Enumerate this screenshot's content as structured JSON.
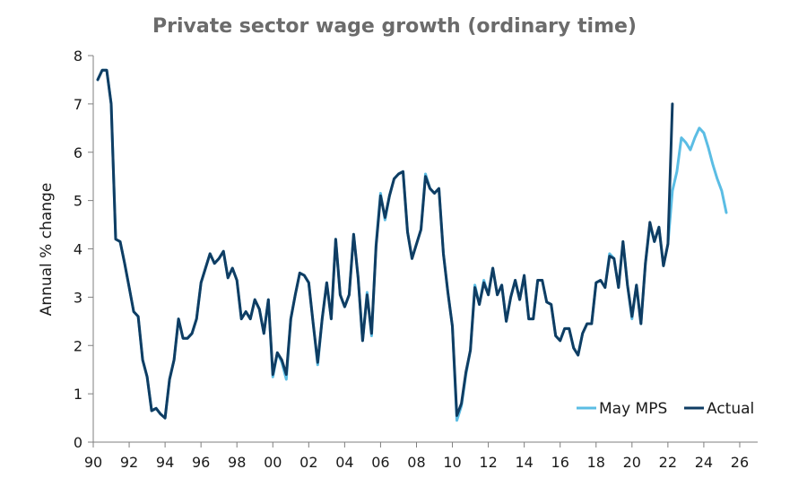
{
  "chart_data": {
    "type": "line",
    "title": "Private sector wage growth (ordinary time)",
    "xlabel": "",
    "ylabel": "Annual % change",
    "xlim": [
      1990,
      2027
    ],
    "ylim": [
      0,
      8
    ],
    "x_ticks": [
      1990,
      1992,
      1994,
      1996,
      1998,
      2000,
      2002,
      2004,
      2006,
      2008,
      2010,
      2012,
      2014,
      2016,
      2018,
      2020,
      2022,
      2024,
      2026
    ],
    "x_tick_labels": [
      "90",
      "92",
      "94",
      "96",
      "98",
      "00",
      "02",
      "04",
      "06",
      "08",
      "10",
      "12",
      "14",
      "16",
      "18",
      "20",
      "22",
      "24",
      "26"
    ],
    "y_ticks": [
      0,
      1,
      2,
      3,
      4,
      5,
      6,
      7,
      8
    ],
    "y_tick_labels": [
      "0",
      "1",
      "2",
      "3",
      "4",
      "5",
      "6",
      "7",
      "8"
    ],
    "grid": false,
    "legend_position": "bottom-right",
    "series": [
      {
        "name": "May MPS",
        "color": "#5bbde4",
        "x": [
          1990.25,
          1990.5,
          1990.75,
          1991.0,
          1991.25,
          1991.5,
          1991.75,
          1992.0,
          1992.25,
          1992.5,
          1992.75,
          1993.0,
          1993.25,
          1993.5,
          1993.75,
          1994.0,
          1994.25,
          1994.5,
          1994.75,
          1995.0,
          1995.25,
          1995.5,
          1995.75,
          1996.0,
          1996.25,
          1996.5,
          1996.75,
          1997.0,
          1997.25,
          1997.5,
          1997.75,
          1998.0,
          1998.25,
          1998.5,
          1998.75,
          1999.0,
          1999.25,
          1999.5,
          1999.75,
          2000.0,
          2000.25,
          2000.5,
          2000.75,
          2001.0,
          2001.25,
          2001.5,
          2001.75,
          2002.0,
          2002.25,
          2002.5,
          2002.75,
          2003.0,
          2003.25,
          2003.5,
          2003.75,
          2004.0,
          2004.25,
          2004.5,
          2004.75,
          2005.0,
          2005.25,
          2005.5,
          2005.75,
          2006.0,
          2006.25,
          2006.5,
          2006.75,
          2007.0,
          2007.25,
          2007.5,
          2007.75,
          2008.0,
          2008.25,
          2008.5,
          2008.75,
          2009.0,
          2009.25,
          2009.5,
          2009.75,
          2010.0,
          2010.25,
          2010.5,
          2010.75,
          2011.0,
          2011.25,
          2011.5,
          2011.75,
          2012.0,
          2012.25,
          2012.5,
          2012.75,
          2013.0,
          2013.25,
          2013.5,
          2013.75,
          2014.0,
          2014.25,
          2014.5,
          2014.75,
          2015.0,
          2015.25,
          2015.5,
          2015.75,
          2016.0,
          2016.25,
          2016.5,
          2016.75,
          2017.0,
          2017.25,
          2017.5,
          2017.75,
          2018.0,
          2018.25,
          2018.5,
          2018.75,
          2019.0,
          2019.25,
          2019.5,
          2019.75,
          2020.0,
          2020.25,
          2020.5,
          2020.75,
          2021.0,
          2021.25,
          2021.5,
          2021.75,
          2022.0,
          2022.25,
          2022.5,
          2022.75,
          2023.0,
          2023.25,
          2023.5,
          2023.75,
          2024.0,
          2024.25,
          2024.5,
          2024.75,
          2025.0,
          2025.25
        ],
        "y": [
          7.5,
          7.7,
          7.7,
          7.0,
          4.2,
          4.15,
          3.7,
          3.2,
          2.7,
          2.6,
          1.7,
          1.35,
          0.65,
          0.7,
          0.58,
          0.5,
          1.3,
          1.7,
          2.55,
          2.15,
          2.15,
          2.25,
          2.55,
          3.3,
          3.6,
          3.9,
          3.7,
          3.8,
          3.95,
          3.4,
          3.6,
          3.35,
          2.55,
          2.7,
          2.55,
          2.95,
          2.75,
          2.25,
          2.95,
          1.35,
          1.85,
          1.65,
          1.3,
          2.55,
          3.05,
          3.5,
          3.45,
          3.3,
          2.45,
          1.6,
          2.55,
          3.3,
          2.55,
          4.2,
          3.05,
          2.8,
          3.05,
          4.3,
          3.4,
          2.1,
          3.1,
          2.2,
          4.1,
          5.15,
          4.6,
          5.1,
          5.45,
          5.55,
          5.6,
          4.35,
          3.8,
          4.1,
          4.4,
          5.55,
          5.25,
          5.15,
          5.25,
          3.9,
          3.1,
          2.4,
          0.45,
          0.75,
          1.4,
          1.9,
          3.25,
          2.85,
          3.35,
          3.05,
          3.6,
          3.05,
          3.25,
          2.5,
          3.0,
          3.35,
          2.95,
          3.45,
          2.55,
          2.55,
          3.35,
          3.35,
          2.9,
          2.85,
          2.2,
          2.1,
          2.35,
          2.35,
          1.95,
          1.8,
          2.25,
          2.45,
          2.45,
          3.3,
          3.35,
          3.2,
          3.9,
          3.8,
          3.2,
          4.15,
          3.25,
          2.55,
          3.25,
          2.45,
          3.7,
          4.5,
          4.15,
          4.45,
          3.65,
          4.1,
          5.2,
          5.6,
          6.3,
          6.2,
          6.05,
          6.3,
          6.5,
          6.4,
          6.1,
          5.75,
          5.45,
          5.2,
          4.75
        ]
      },
      {
        "name": "Actual",
        "color": "#0f3d63",
        "x": [
          1990.25,
          1990.5,
          1990.75,
          1991.0,
          1991.25,
          1991.5,
          1991.75,
          1992.0,
          1992.25,
          1992.5,
          1992.75,
          1993.0,
          1993.25,
          1993.5,
          1993.75,
          1994.0,
          1994.25,
          1994.5,
          1994.75,
          1995.0,
          1995.25,
          1995.5,
          1995.75,
          1996.0,
          1996.25,
          1996.5,
          1996.75,
          1997.0,
          1997.25,
          1997.5,
          1997.75,
          1998.0,
          1998.25,
          1998.5,
          1998.75,
          1999.0,
          1999.25,
          1999.5,
          1999.75,
          2000.0,
          2000.25,
          2000.5,
          2000.75,
          2001.0,
          2001.25,
          2001.5,
          2001.75,
          2002.0,
          2002.25,
          2002.5,
          2002.75,
          2003.0,
          2003.25,
          2003.5,
          2003.75,
          2004.0,
          2004.25,
          2004.5,
          2004.75,
          2005.0,
          2005.25,
          2005.5,
          2005.75,
          2006.0,
          2006.25,
          2006.5,
          2006.75,
          2007.0,
          2007.25,
          2007.5,
          2007.75,
          2008.0,
          2008.25,
          2008.5,
          2008.75,
          2009.0,
          2009.25,
          2009.5,
          2009.75,
          2010.0,
          2010.25,
          2010.5,
          2010.75,
          2011.0,
          2011.25,
          2011.5,
          2011.75,
          2012.0,
          2012.25,
          2012.5,
          2012.75,
          2013.0,
          2013.25,
          2013.5,
          2013.75,
          2014.0,
          2014.25,
          2014.5,
          2014.75,
          2015.0,
          2015.25,
          2015.5,
          2015.75,
          2016.0,
          2016.25,
          2016.5,
          2016.75,
          2017.0,
          2017.25,
          2017.5,
          2017.75,
          2018.0,
          2018.25,
          2018.5,
          2018.75,
          2019.0,
          2019.25,
          2019.5,
          2019.75,
          2020.0,
          2020.25,
          2020.5,
          2020.75,
          2021.0,
          2021.25,
          2021.5,
          2021.75,
          2022.0,
          2022.25
        ],
        "y": [
          7.5,
          7.7,
          7.7,
          7.0,
          4.2,
          4.15,
          3.7,
          3.2,
          2.7,
          2.6,
          1.7,
          1.35,
          0.65,
          0.7,
          0.58,
          0.5,
          1.3,
          1.7,
          2.55,
          2.15,
          2.15,
          2.25,
          2.55,
          3.3,
          3.6,
          3.9,
          3.7,
          3.8,
          3.95,
          3.4,
          3.6,
          3.35,
          2.55,
          2.7,
          2.55,
          2.95,
          2.75,
          2.25,
          2.95,
          1.4,
          1.85,
          1.7,
          1.4,
          2.55,
          3.05,
          3.5,
          3.45,
          3.3,
          2.45,
          1.65,
          2.55,
          3.3,
          2.55,
          4.2,
          3.05,
          2.8,
          3.05,
          4.3,
          3.4,
          2.1,
          3.05,
          2.25,
          4.05,
          5.1,
          4.65,
          5.1,
          5.45,
          5.55,
          5.6,
          4.35,
          3.8,
          4.1,
          4.4,
          5.5,
          5.25,
          5.15,
          5.25,
          3.9,
          3.1,
          2.4,
          0.55,
          0.8,
          1.45,
          1.9,
          3.2,
          2.85,
          3.3,
          3.05,
          3.6,
          3.05,
          3.25,
          2.5,
          3.0,
          3.35,
          2.95,
          3.45,
          2.55,
          2.55,
          3.35,
          3.35,
          2.9,
          2.85,
          2.2,
          2.1,
          2.35,
          2.35,
          1.95,
          1.8,
          2.25,
          2.45,
          2.45,
          3.3,
          3.35,
          3.2,
          3.85,
          3.8,
          3.2,
          4.15,
          3.25,
          2.6,
          3.25,
          2.45,
          3.7,
          4.55,
          4.15,
          4.45,
          3.65,
          4.1,
          7.0
        ]
      }
    ]
  }
}
